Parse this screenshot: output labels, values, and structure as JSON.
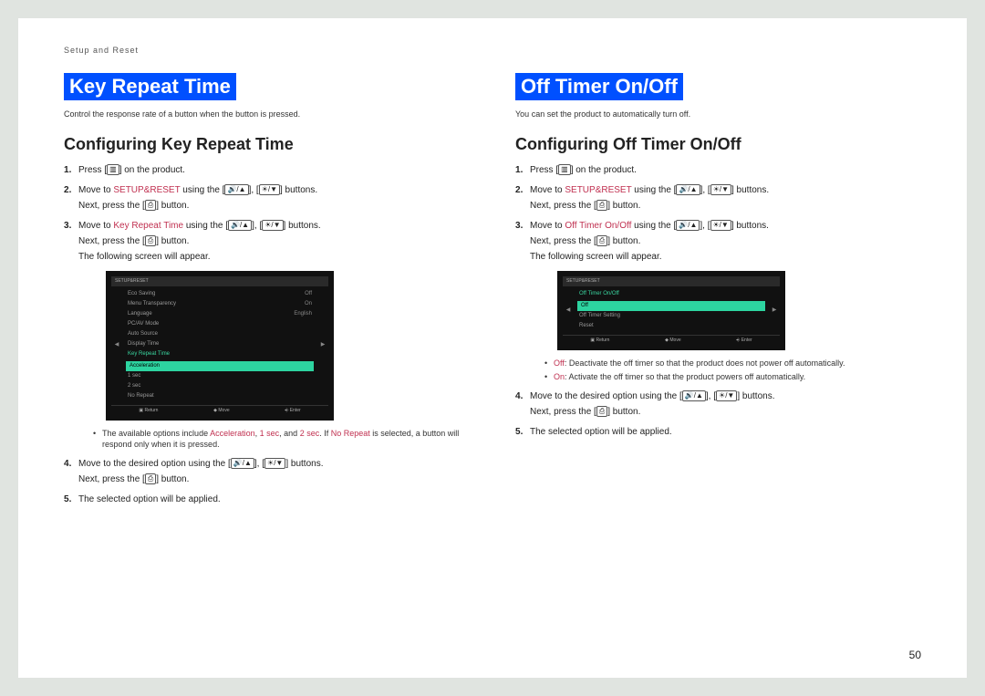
{
  "breadcrumb": "Setup and Reset",
  "page_number": "50",
  "icons": {
    "menu": "▥",
    "up": "🔊/▲",
    "down": "☀/▼",
    "enter": "⎙"
  },
  "left": {
    "title": "Key Repeat Time",
    "desc": "Control the response rate of a button when the button is pressed.",
    "subtitle": "Configuring Key Repeat Time",
    "step1_a": "Press [",
    "step1_b": "] on the product.",
    "step2_a": "Move to ",
    "step2_link": "SETUP&RESET",
    "step2_b": " using the [",
    "step2_c": "], [",
    "step2_d": "] buttons.",
    "step2_sub_a": "Next, press the [",
    "step2_sub_b": "] button.",
    "step3_a": "Move to ",
    "step3_link": "Key Repeat Time",
    "step3_b": " using the [",
    "step3_c": "], [",
    "step3_d": "] buttons.",
    "step3_sub1_a": "Next, press the [",
    "step3_sub1_b": "] button.",
    "step3_sub2": "The following screen will appear.",
    "osd": {
      "title": "SETUP&RESET",
      "rows": [
        {
          "l": "Eco Saving",
          "r": "Off"
        },
        {
          "l": "Menu Transparency",
          "r": "On"
        },
        {
          "l": "Language",
          "r": "English"
        },
        {
          "l": "PC/AV Mode",
          "r": ""
        },
        {
          "l": "Auto Source",
          "r": ""
        },
        {
          "l": "Display Time",
          "r": ""
        }
      ],
      "active": "Key Repeat Time",
      "sel": "Acceleration",
      "opts": [
        "1 sec",
        "2 sec",
        "No Repeat"
      ],
      "foot": [
        "▣ Return",
        "◆ Move",
        "⎆ Enter"
      ]
    },
    "bullet_a": "The available options include ",
    "bullet_hl1": "Acceleration",
    "bullet_b": ", ",
    "bullet_hl2": "1 sec",
    "bullet_c": ", and ",
    "bullet_hl3": "2 sec",
    "bullet_d": ". If ",
    "bullet_hl4": "No Repeat",
    "bullet_e": " is selected, a button will respond only when it is pressed.",
    "step4_a": "Move to the desired option using the [",
    "step4_b": "], [",
    "step4_c": "] buttons.",
    "step4_sub_a": "Next, press the [",
    "step4_sub_b": "] button.",
    "step5": "The selected option will be applied."
  },
  "right": {
    "title": "Off Timer On/Off",
    "desc": "You can set the product to automatically turn off.",
    "subtitle": "Configuring Off Timer On/Off",
    "step1_a": "Press [",
    "step1_b": "] on the product.",
    "step2_a": "Move to ",
    "step2_link": "SETUP&RESET",
    "step2_b": " using the [",
    "step2_c": "], [",
    "step2_d": "] buttons.",
    "step2_sub_a": "Next, press the [",
    "step2_sub_b": "] button.",
    "step3_a": "Move to ",
    "step3_link": "Off Timer On/Off",
    "step3_b": " using the [",
    "step3_c": "], [",
    "step3_d": "] buttons.",
    "step3_sub1_a": "Next, press the [",
    "step3_sub1_b": "] button.",
    "step3_sub2": "The following screen will appear.",
    "osd": {
      "title": "SETUP&RESET",
      "active": "Off Timer On/Off",
      "sel": "Off",
      "rows": [
        {
          "l": "Off Timer Setting",
          "r": ""
        },
        {
          "l": "Reset",
          "r": ""
        }
      ],
      "foot": [
        "▣ Return",
        "◆ Move",
        "⎆ Enter"
      ]
    },
    "bullet1_hl": "Off",
    "bullet1": ": Deactivate the off timer so that the product does not power off automatically.",
    "bullet2_hl": "On",
    "bullet2": ": Activate the off timer so that the product powers off automatically.",
    "step4_a": "Move to the desired option using the [",
    "step4_b": "], [",
    "step4_c": "] buttons.",
    "step4_sub_a": "Next, press the [",
    "step4_sub_b": "] button.",
    "step5": "The selected option will be applied."
  }
}
